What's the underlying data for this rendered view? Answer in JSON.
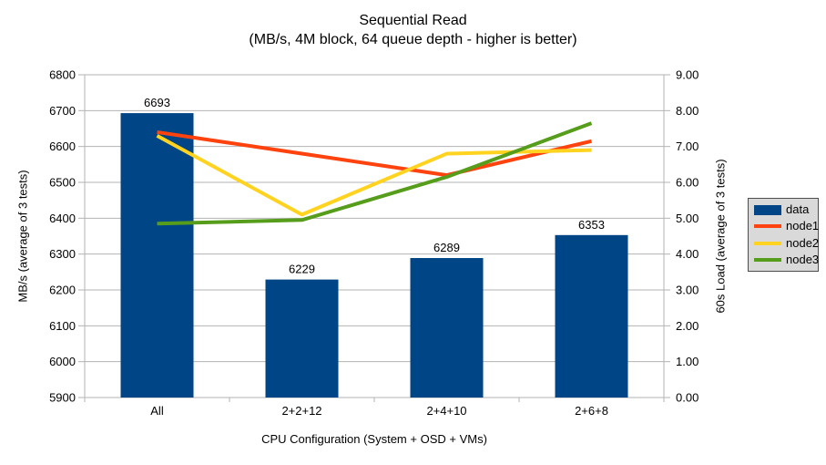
{
  "title": "Sequential Read",
  "subtitle": "(MB/s, 4M block, 64 queue depth - higher is better)",
  "chart_data": {
    "type": "bar+line",
    "categories": [
      "All",
      "2+2+12",
      "2+4+10",
      "2+6+8"
    ],
    "series": [
      {
        "name": "data",
        "type": "bar",
        "axis": "left",
        "color": "#004586",
        "values": [
          6693,
          6229,
          6289,
          6353
        ],
        "data_labels": [
          "6693",
          "6229",
          "6289",
          "6353"
        ]
      },
      {
        "name": "node1",
        "type": "line",
        "axis": "right",
        "color": "#FF420E",
        "values": [
          7.4,
          6.8,
          6.2,
          7.15
        ]
      },
      {
        "name": "node2",
        "type": "line",
        "axis": "right",
        "color": "#FFD320",
        "values": [
          7.3,
          5.1,
          6.8,
          6.9
        ]
      },
      {
        "name": "node3",
        "type": "line",
        "axis": "right",
        "color": "#579D1C",
        "values": [
          4.85,
          4.95,
          6.15,
          7.65
        ]
      }
    ],
    "left_axis": {
      "title": "MB/s (average of 3 tests)",
      "min": 5900,
      "max": 6800,
      "step": 100
    },
    "right_axis": {
      "title": "60s Load (average of 3 tests)",
      "min": 0,
      "max": 9,
      "step": 1,
      "decimals": 2
    },
    "xlabel": "CPU Configuration (System + OSD + VMs)",
    "legend": {
      "position": "right",
      "items": [
        "data",
        "node1",
        "node2",
        "node3"
      ]
    },
    "grid": {
      "horizontal": true,
      "color": "#b3b3b3"
    },
    "colors": {
      "legend_background": "#d9d9d9",
      "legend_border": "#4d4d4d",
      "text": "#000000"
    }
  }
}
